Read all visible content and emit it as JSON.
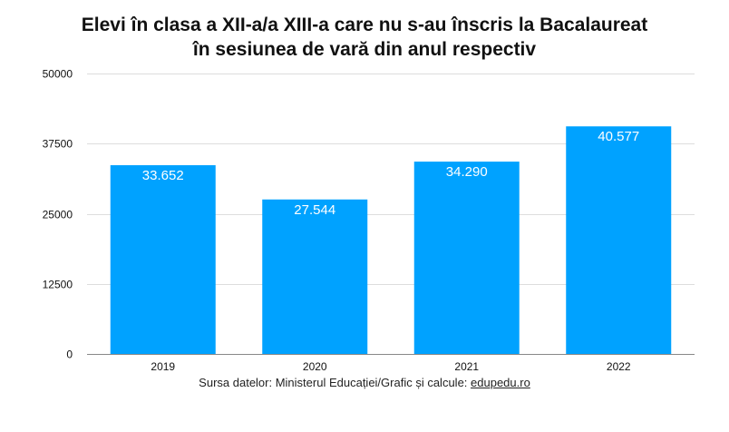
{
  "title_lines": [
    "Elevi în clasa a XII-a/a XIII-a care nu s-au înscris la Bacalaureat",
    "în sesiunea de vară din anul respectiv"
  ],
  "source": {
    "prefix": "Sursa datelor: Ministerul Educației/Grafic și calcule: ",
    "link": "edupedu.ro"
  },
  "colors": {
    "bar": "#00A2FF",
    "grid": "#DDDDDD",
    "axis": "#888888",
    "text": "#111111",
    "label": "#FFFFFF"
  },
  "chart_data": {
    "type": "bar",
    "title": "Elevi în clasa a XII-a/a XIII-a care nu s-au înscris la Bacalaureat în sesiunea de vară din anul respectiv",
    "xlabel": "",
    "ylabel": "",
    "categories": [
      "2019",
      "2020",
      "2021",
      "2022"
    ],
    "values": [
      33652,
      27544,
      34290,
      40577
    ],
    "value_labels": [
      "33.652",
      "27.544",
      "34.290",
      "40.577"
    ],
    "ylim": [
      0,
      50000
    ],
    "yticks": [
      0,
      12500,
      25000,
      37500,
      50000
    ],
    "ytick_labels": [
      "0",
      "12500",
      "25000",
      "37500",
      "50000"
    ],
    "grid": true,
    "legend": "none"
  }
}
